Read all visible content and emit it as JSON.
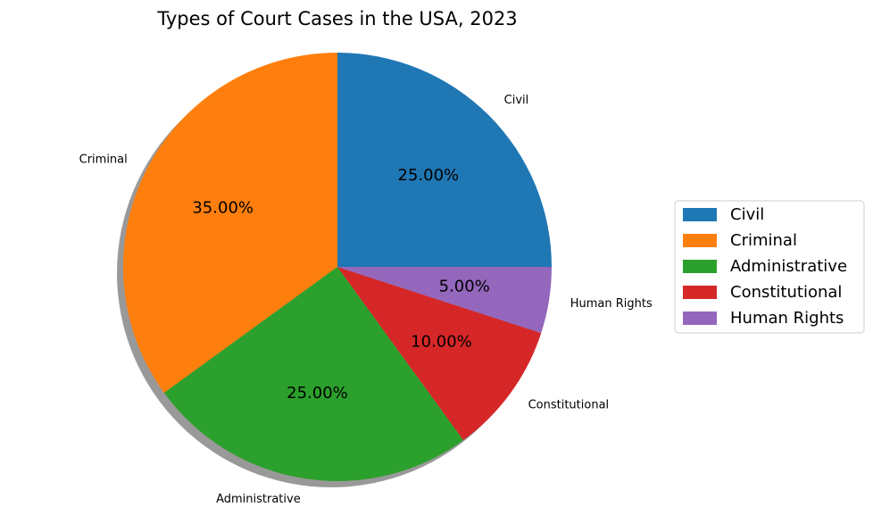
{
  "chart_data": {
    "type": "pie",
    "title": "Types of Court Cases in the USA, 2023",
    "categories": [
      "Civil",
      "Criminal",
      "Administrative",
      "Constitutional",
      "Human Rights"
    ],
    "values": [
      25,
      35,
      25,
      10,
      5
    ],
    "percent_labels": [
      "25.00%",
      "35.00%",
      "25.00%",
      "10.00%",
      "5.00%"
    ],
    "colors": [
      "#1f77b4",
      "#ff7f0e",
      "#2ca02c",
      "#d62728",
      "#9467bd"
    ],
    "start_angle_deg": 0,
    "direction": "counterclockwise",
    "shadow": true,
    "legend": {
      "position": "right",
      "entries": [
        "Civil",
        "Criminal",
        "Administrative",
        "Constitutional",
        "Human Rights"
      ]
    }
  }
}
